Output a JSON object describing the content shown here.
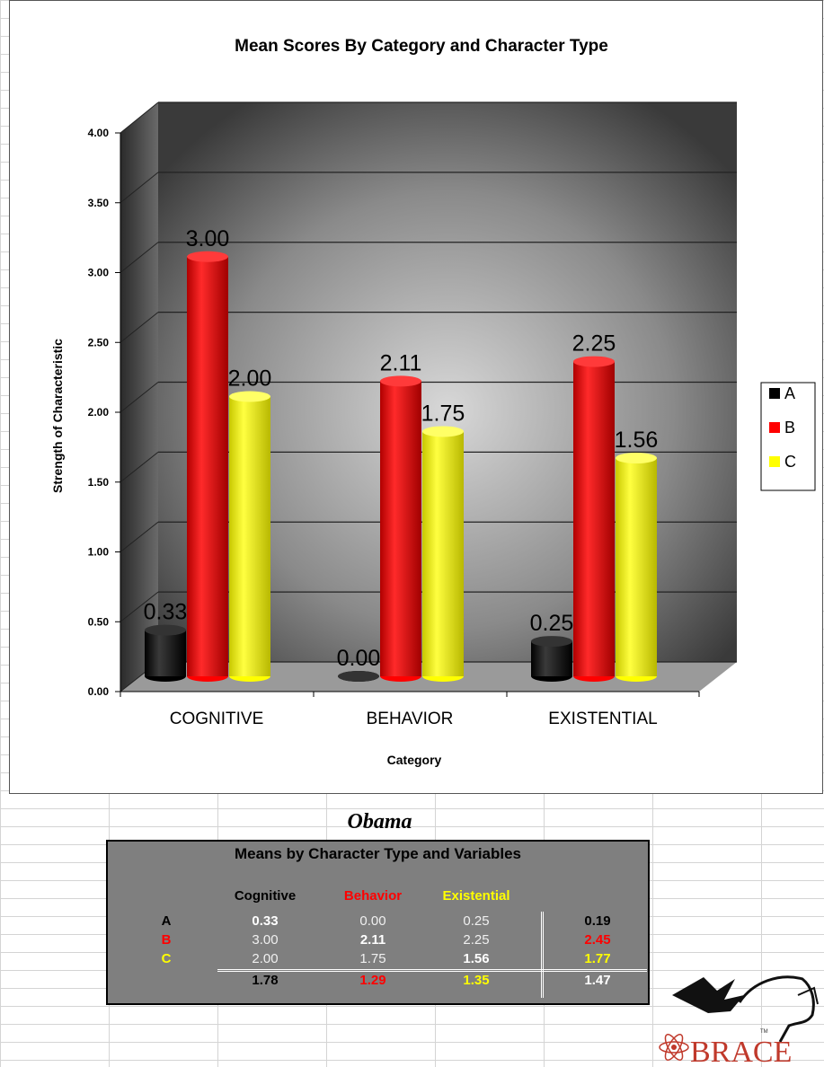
{
  "chart_data": {
    "type": "bar",
    "title": "Mean Scores By Category and Character Type",
    "xlabel": "Category",
    "ylabel": "Strength of Characteristic",
    "categories": [
      "COGNITIVE",
      "BEHAVIOR",
      "EXISTENTIAL"
    ],
    "series": [
      {
        "name": "A",
        "values": [
          0.33,
          0.0,
          0.25
        ],
        "labels": [
          "0.33",
          "0.00",
          "0.25"
        ],
        "color": "#000000"
      },
      {
        "name": "B",
        "values": [
          3.0,
          2.11,
          2.25
        ],
        "labels": [
          "3.00",
          "2.11",
          "2.25"
        ],
        "color": "#ff0000"
      },
      {
        "name": "C",
        "values": [
          2.0,
          1.75,
          1.56
        ],
        "labels": [
          "2.00",
          "1.75",
          "1.56"
        ],
        "color": "#ffff00"
      }
    ],
    "ylim": [
      0,
      4
    ],
    "yticks": [
      "0.00",
      "0.50",
      "1.00",
      "1.50",
      "2.00",
      "2.50",
      "3.00",
      "3.50",
      "4.00"
    ],
    "grid": true,
    "legend_position": "right"
  },
  "table": {
    "heading": "Obama",
    "title": "Means by Character Type and Variables",
    "columns": [
      {
        "label": "Cognitive",
        "color": "#000000"
      },
      {
        "label": "Behavior",
        "color": "#ff0000"
      },
      {
        "label": "Existential",
        "color": "#ffff00"
      }
    ],
    "rows": [
      {
        "label": "A",
        "label_color": "#000000",
        "values": [
          "0.33",
          "0.00",
          "0.25"
        ],
        "total": "0.19",
        "total_color": "#000000"
      },
      {
        "label": "B",
        "label_color": "#ff0000",
        "values": [
          "3.00",
          "2.11",
          "2.25"
        ],
        "total": "2.45",
        "total_color": "#ff0000"
      },
      {
        "label": "C",
        "label_color": "#ffff00",
        "values": [
          "2.00",
          "1.75",
          "1.56"
        ],
        "total": "1.77",
        "total_color": "#ffff00"
      }
    ],
    "column_totals": [
      {
        "value": "1.78",
        "color": "#000000"
      },
      {
        "value": "1.29",
        "color": "#ff0000"
      },
      {
        "value": "1.35",
        "color": "#ffff00"
      }
    ],
    "grand_total": "1.47"
  },
  "logo": {
    "text": "BRACE",
    "tm": "TM",
    "icon": "pegasus-atom-logo"
  }
}
